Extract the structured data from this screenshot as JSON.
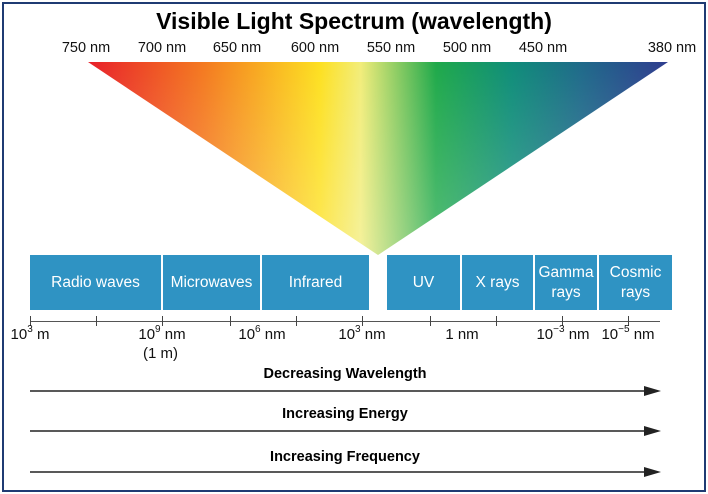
{
  "title": "Visible Light Spectrum (wavelength)",
  "visible_wavelengths": [
    "750 nm",
    "700 nm",
    "650 nm",
    "600 nm",
    "550 nm",
    "500 nm",
    "450 nm",
    "380 nm"
  ],
  "bands": [
    {
      "label": "Radio waves"
    },
    {
      "label": "Microwaves"
    },
    {
      "label": "Infrared"
    },
    {
      "label": "UV"
    },
    {
      "label": "X rays"
    },
    {
      "label": "Gamma rays"
    },
    {
      "label": "Cosmic rays"
    }
  ],
  "scale": [
    {
      "base": "10",
      "exp": "3",
      "unit": " m"
    },
    {
      "base": "10",
      "exp": "9",
      "unit": " nm"
    },
    {
      "base": "10",
      "exp": "6",
      "unit": " nm"
    },
    {
      "base": "10",
      "exp": "3",
      "unit": " nm"
    },
    {
      "base": "1",
      "exp": "",
      "unit": " nm"
    },
    {
      "base": "10",
      "exp": "−3",
      "unit": " nm"
    },
    {
      "base": "10",
      "exp": "−5",
      "unit": " nm"
    }
  ],
  "scale_sub": "(1 m)",
  "arrows": [
    "Decreasing Wavelength",
    "Increasing Energy",
    "Increasing Frequency"
  ],
  "colors": {
    "frame": "#1f3b73",
    "band": "#2f93c3",
    "spectrum_stops": [
      "#e8202a",
      "#f47a20",
      "#fde021",
      "#f2ed7a",
      "#1fa94a",
      "#0f8d79",
      "#1f6a8a",
      "#2f3c8f"
    ]
  }
}
